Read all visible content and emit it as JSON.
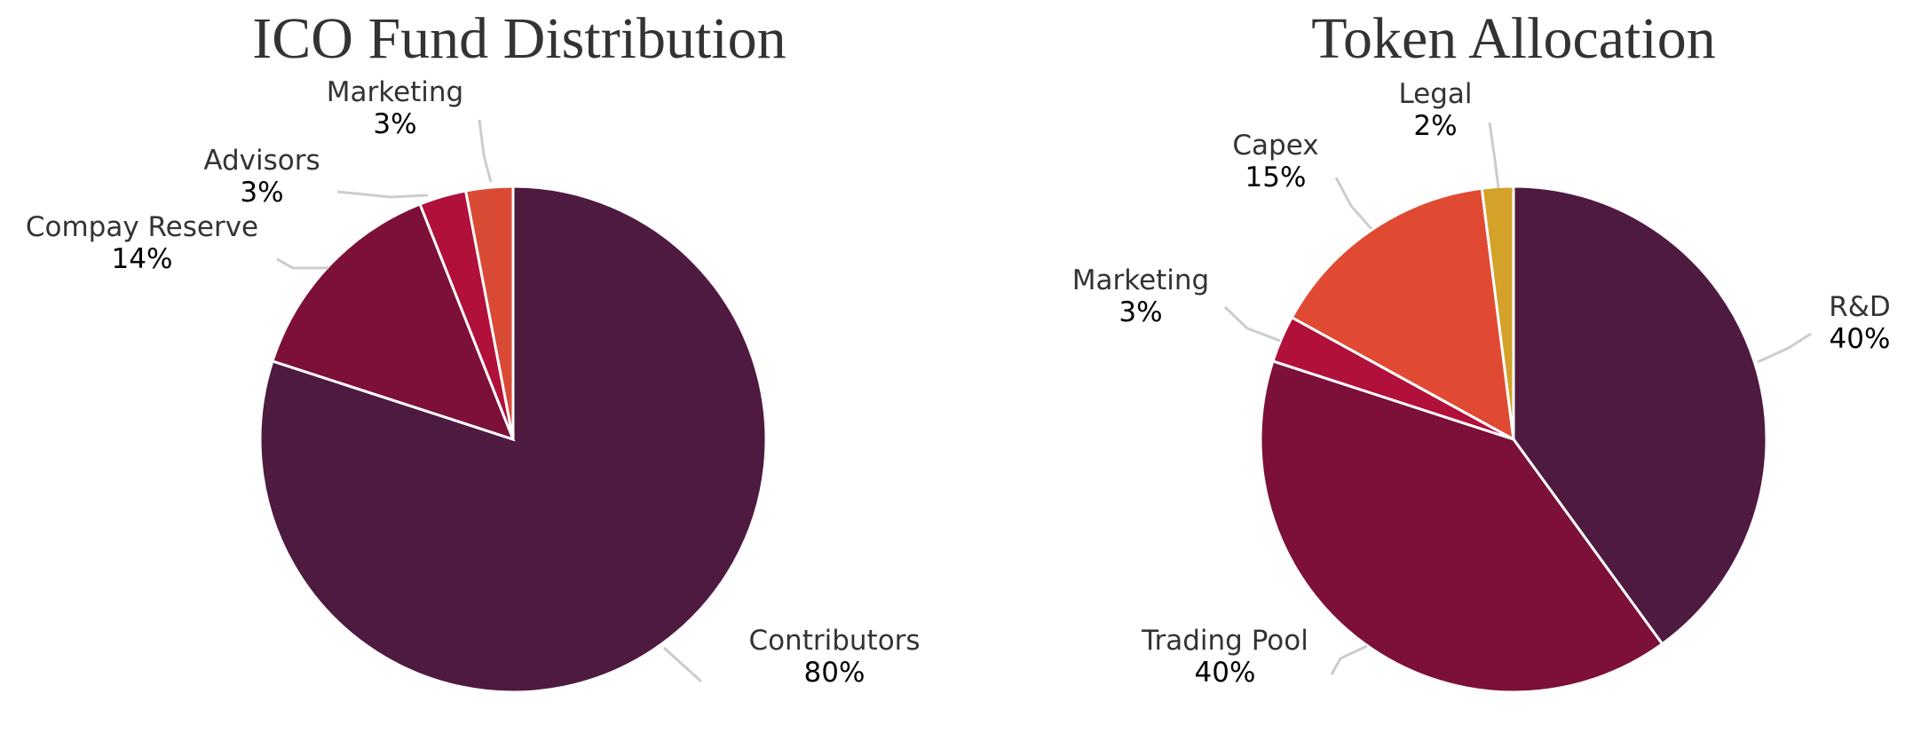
{
  "chart_data": [
    {
      "type": "pie",
      "title": "ICO Fund Distribution",
      "slices": [
        {
          "name": "Contributors",
          "value": 80,
          "label": "80%",
          "color": "#4e1a40"
        },
        {
          "name": "Compay Reserve",
          "value": 14,
          "label": "14%",
          "color": "#7c1038"
        },
        {
          "name": "Advisors",
          "value": 3,
          "label": "3%",
          "color": "#b0103a"
        },
        {
          "name": "Marketing",
          "value": 3,
          "label": "3%",
          "color": "#d94a35"
        }
      ]
    },
    {
      "type": "pie",
      "title": "Token Allocation",
      "slices": [
        {
          "name": "R&D",
          "value": 40,
          "label": "40%",
          "color": "#4e1a40"
        },
        {
          "name": "Trading Pool",
          "value": 40,
          "label": "40%",
          "color": "#7c1038"
        },
        {
          "name": "Marketing",
          "value": 3,
          "label": "3%",
          "color": "#b0103a"
        },
        {
          "name": "Capex",
          "value": 15,
          "label": "15%",
          "color": "#e04a32"
        },
        {
          "name": "Legal",
          "value": 2,
          "label": "2%",
          "color": "#d4a228"
        }
      ]
    }
  ]
}
